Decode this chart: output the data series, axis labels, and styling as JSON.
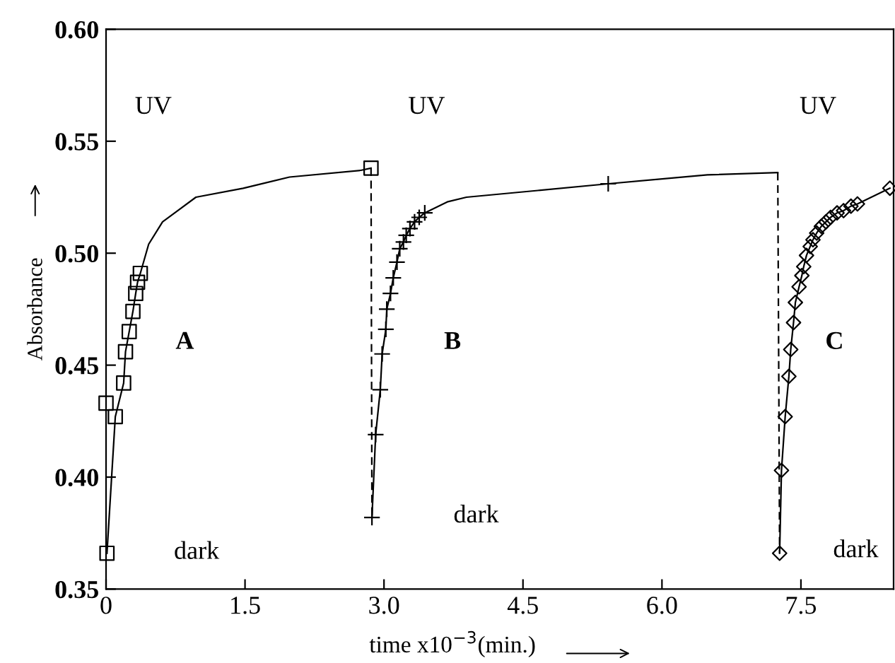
{
  "chart_data": {
    "type": "line",
    "xlabel": "time x10$^{−3}$(min.)",
    "ylabel": "Absorbance",
    "xlim": [
      0,
      8.5
    ],
    "ylim": [
      0.35,
      0.6
    ],
    "xticks": [
      {
        "value": 0,
        "label": "0"
      },
      1.5,
      {
        "value": 3.0,
        "label": "3.0"
      },
      4.5,
      {
        "value": 6.0,
        "label": "6.0"
      },
      7.5
    ],
    "yticks": [
      {
        "value": 0.35,
        "label": "0.35"
      },
      {
        "value": 0.4,
        "label": "0.40"
      },
      {
        "value": 0.45,
        "label": "0.45"
      },
      {
        "value": 0.5,
        "label": "0.50"
      },
      {
        "value": 0.55,
        "label": "0.55"
      },
      {
        "value": 0.6,
        "label": "0.60"
      }
    ],
    "grid": false,
    "legend": false,
    "series": [
      {
        "color": "#000000",
        "marker": "none",
        "line_style": "solid",
        "x": [
          0.01,
          0.1,
          0.19,
          0.21,
          0.25,
          0.29,
          0.32,
          0.34,
          0.37,
          0.46,
          0.61,
          0.97,
          1.48,
          1.98,
          2.75,
          2.86
        ],
        "values": [
          0.366,
          0.427,
          0.442,
          0.456,
          0.465,
          0.474,
          0.482,
          0.487,
          0.491,
          0.504,
          0.514,
          0.525,
          0.529,
          0.534,
          0.537,
          0.538
        ]
      },
      {
        "type": "scatter",
        "color": "#000000",
        "marker": "square",
        "x": [
          0.01,
          0.0,
          0.1,
          0.19,
          0.21,
          0.25,
          0.29,
          0.32,
          0.34,
          0.37,
          2.86
        ],
        "values": [
          0.366,
          0.433,
          0.427,
          0.442,
          0.456,
          0.465,
          0.474,
          0.482,
          0.487,
          0.491,
          0.538
        ]
      },
      {
        "color": "#000000",
        "marker": "none",
        "line_style": "dashed",
        "x": [
          2.86,
          2.87
        ],
        "values": [
          0.538,
          0.382
        ]
      },
      {
        "color": "#000000",
        "marker": "none",
        "line_style": "solid",
        "x": [
          2.87,
          2.91,
          2.96,
          2.98,
          3.02,
          3.03,
          3.07,
          3.1,
          3.14,
          3.17,
          3.21,
          3.24,
          3.28,
          3.33,
          3.38,
          3.44,
          3.69,
          3.89,
          4.66,
          5.42,
          6.49,
          7.25
        ],
        "values": [
          0.382,
          0.419,
          0.439,
          0.455,
          0.466,
          0.475,
          0.482,
          0.489,
          0.496,
          0.502,
          0.505,
          0.508,
          0.511,
          0.514,
          0.516,
          0.518,
          0.523,
          0.525,
          0.528,
          0.531,
          0.535,
          0.536
        ]
      },
      {
        "type": "scatter",
        "color": "#000000",
        "marker": "cross",
        "x": [
          2.87,
          2.91,
          2.96,
          2.98,
          3.02,
          3.03,
          3.07,
          3.1,
          3.14,
          3.17,
          3.21,
          3.24,
          3.28,
          3.33,
          3.38,
          3.44,
          5.42
        ],
        "values": [
          0.382,
          0.419,
          0.439,
          0.455,
          0.466,
          0.475,
          0.482,
          0.489,
          0.496,
          0.502,
          0.505,
          0.508,
          0.511,
          0.514,
          0.516,
          0.518,
          0.531
        ]
      },
      {
        "color": "#000000",
        "marker": "none",
        "line_style": "dashed",
        "x": [
          7.25,
          7.27
        ],
        "values": [
          0.536,
          0.366
        ]
      },
      {
        "color": "#000000",
        "marker": "none",
        "line_style": "solid",
        "x": [
          7.27,
          7.29,
          7.33,
          7.37,
          7.39,
          7.42,
          7.44,
          7.48,
          7.51,
          7.53,
          7.56,
          7.6,
          7.63,
          7.67,
          7.72,
          7.77,
          7.82,
          7.89,
          7.96,
          8.04,
          8.11,
          8.46
        ],
        "values": [
          0.366,
          0.403,
          0.427,
          0.445,
          0.457,
          0.469,
          0.478,
          0.485,
          0.49,
          0.494,
          0.499,
          0.503,
          0.506,
          0.509,
          0.512,
          0.514,
          0.516,
          0.518,
          0.519,
          0.521,
          0.522,
          0.529
        ]
      },
      {
        "type": "scatter",
        "color": "#000000",
        "marker": "diamond",
        "x": [
          7.27,
          7.29,
          7.33,
          7.37,
          7.39,
          7.42,
          7.44,
          7.48,
          7.51,
          7.53,
          7.56,
          7.6,
          7.63,
          7.67,
          7.72,
          7.77,
          7.82,
          7.89,
          7.96,
          8.04,
          8.11,
          8.46
        ],
        "values": [
          0.366,
          0.403,
          0.427,
          0.445,
          0.457,
          0.469,
          0.478,
          0.485,
          0.49,
          0.494,
          0.499,
          0.503,
          0.506,
          0.509,
          0.512,
          0.514,
          0.516,
          0.518,
          0.519,
          0.521,
          0.522,
          0.529
        ]
      }
    ],
    "annotations": [
      "UV",
      "UV",
      "UV",
      "A",
      "B",
      "C",
      "dark",
      "dark",
      "dark"
    ]
  }
}
